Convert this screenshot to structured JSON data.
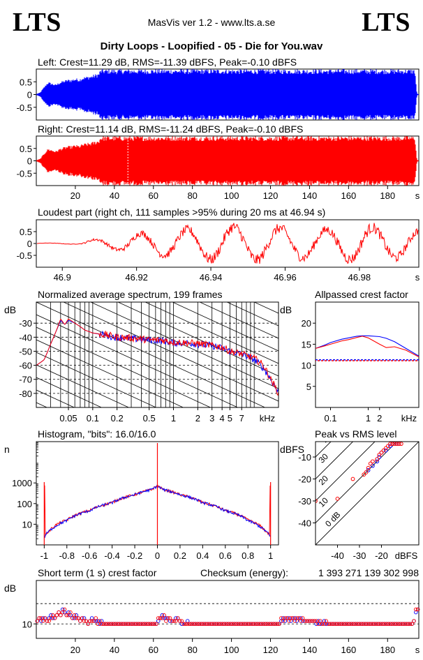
{
  "header": {
    "brand_left": "LTS",
    "brand_right": "LTS",
    "app_line": "MasVis ver 1.2 - www.lts.a.se",
    "file_title": "Dirty Loops - Loopified - 05 - Die for You.wav"
  },
  "colors": {
    "left_channel": "#0000ff",
    "right_channel": "#ff0000"
  },
  "chart_data": [
    {
      "id": "left",
      "type": "area",
      "title": "Left: Crest=11.29 dB, RMS=-11.39 dBFS, Peak=-0.10 dBFS",
      "ylim": [
        -1,
        1
      ],
      "yticks": [
        "0.5",
        "0",
        "-0.5"
      ],
      "xlim": [
        0,
        196
      ],
      "envelope": [
        [
          0,
          0.02
        ],
        [
          2,
          0.08
        ],
        [
          4,
          0.3
        ],
        [
          6,
          0.5
        ],
        [
          8,
          0.45
        ],
        [
          10,
          0.4
        ],
        [
          12,
          0.5
        ],
        [
          14,
          0.55
        ],
        [
          16,
          0.6
        ],
        [
          18,
          0.6
        ],
        [
          20,
          0.65
        ],
        [
          22,
          0.62
        ],
        [
          24,
          0.7
        ],
        [
          26,
          0.72
        ],
        [
          28,
          0.75
        ],
        [
          30,
          0.8
        ],
        [
          32,
          0.85
        ],
        [
          33,
          1.0
        ],
        [
          194,
          1.0
        ],
        [
          195,
          0.05
        ],
        [
          196,
          0.0
        ]
      ]
    },
    {
      "id": "right",
      "type": "area",
      "title": "Right: Crest=11.14 dB, RMS=-11.24 dBFS, Peak=-0.10 dBFS",
      "ylim": [
        -1,
        1
      ],
      "yticks": [
        "0.5",
        "0",
        "-0.5"
      ],
      "xlim": [
        0,
        196
      ],
      "xticks": [
        "20",
        "40",
        "60",
        "80",
        "100",
        "120",
        "140",
        "160",
        "180"
      ],
      "xunit": "s",
      "envelope": [
        [
          0,
          0.02
        ],
        [
          2,
          0.08
        ],
        [
          4,
          0.3
        ],
        [
          6,
          0.5
        ],
        [
          8,
          0.45
        ],
        [
          10,
          0.4
        ],
        [
          12,
          0.5
        ],
        [
          14,
          0.55
        ],
        [
          16,
          0.6
        ],
        [
          18,
          0.6
        ],
        [
          20,
          0.65
        ],
        [
          22,
          0.62
        ],
        [
          24,
          0.7
        ],
        [
          26,
          0.72
        ],
        [
          28,
          0.75
        ],
        [
          30,
          0.8
        ],
        [
          32,
          0.85
        ],
        [
          33,
          1.0
        ],
        [
          194,
          1.0
        ],
        [
          195,
          0.05
        ],
        [
          196,
          0.0
        ]
      ]
    },
    {
      "id": "loudest",
      "type": "line",
      "title": "Loudest part (right ch, 111 samples >95% during 20 ms at 46.94 s)",
      "ylim": [
        -1,
        1
      ],
      "yticks": [
        "0.5",
        "0",
        "-0.5"
      ],
      "xlim": [
        46.893,
        46.996
      ],
      "xticks": [
        "46.9",
        "46.92",
        "46.94",
        "46.96",
        "46.98"
      ],
      "xunit": "s",
      "envelope": [
        [
          46.893,
          0.02
        ],
        [
          46.9,
          0.03
        ],
        [
          46.905,
          0.04
        ],
        [
          46.906,
          0.15
        ],
        [
          46.91,
          0.25
        ],
        [
          46.915,
          0.35
        ],
        [
          46.92,
          0.55
        ],
        [
          46.93,
          0.7
        ],
        [
          46.94,
          0.9
        ],
        [
          46.95,
          0.95
        ],
        [
          46.96,
          0.85
        ],
        [
          46.97,
          0.75
        ],
        [
          46.98,
          0.95
        ],
        [
          46.996,
          0.7
        ]
      ],
      "dominant_period_s": 0.0125
    },
    {
      "id": "spectrum",
      "type": "line",
      "title": "Normalized average spectrum, 199 frames",
      "ylabel": "dB",
      "xunit": "kHz",
      "xlim": [
        0.02,
        20
      ],
      "ylim": [
        -90,
        -15
      ],
      "yticks": [
        "-30",
        "-40",
        "-50",
        "-60",
        "-70",
        "-80"
      ],
      "xticks": [
        "0.05",
        "0.1",
        "0.2",
        "0.5",
        "1",
        "2",
        "3",
        "4",
        "5",
        "7"
      ],
      "grid": true,
      "x": [
        0.02,
        0.025,
        0.03,
        0.035,
        0.04,
        0.045,
        0.05,
        0.06,
        0.08,
        0.1,
        0.15,
        0.2,
        0.3,
        0.5,
        0.7,
        1,
        1.5,
        2,
        3,
        4,
        5,
        7,
        10,
        13,
        16,
        20
      ],
      "series": [
        {
          "name": "L",
          "color": "#0000ff",
          "values": [
            -60,
            -56,
            -45,
            -36,
            -28,
            -31,
            -28,
            -30,
            -35,
            -37,
            -39,
            -40,
            -41,
            -42,
            -42.5,
            -44,
            -44,
            -45,
            -46,
            -48,
            -50,
            -52,
            -56,
            -62,
            -70,
            -80
          ]
        },
        {
          "name": "R",
          "color": "#ff0000",
          "values": [
            -60,
            -56,
            -45,
            -36,
            -27,
            -31,
            -27,
            -30,
            -35,
            -37,
            -38.5,
            -40,
            -40.5,
            -42,
            -42,
            -43.5,
            -44,
            -44.5,
            -46,
            -47,
            -50,
            -52,
            -55,
            -60,
            -70,
            -80
          ]
        }
      ]
    },
    {
      "id": "allpass",
      "type": "line",
      "title": "Allpassed crest factor",
      "ylabel": "dB",
      "xunit": "kHz",
      "xlim": [
        0.04,
        22
      ],
      "ylim": [
        0,
        25
      ],
      "yticks": [
        "20",
        "15",
        "10",
        "5"
      ],
      "xticks": [
        "0.1",
        "1",
        "2"
      ],
      "x": [
        0.04,
        0.07,
        0.1,
        0.2,
        0.3,
        0.5,
        0.7,
        1,
        2,
        3,
        5,
        10,
        22
      ],
      "series": [
        {
          "name": "L",
          "color": "#0000ff",
          "values": [
            14,
            14.8,
            15.4,
            16.2,
            16.5,
            16.9,
            17.0,
            17.0,
            16.8,
            16.4,
            15.6,
            14.0,
            12.2
          ]
        },
        {
          "name": "R",
          "color": "#ff0000",
          "values": [
            14,
            14.6,
            15.0,
            15.8,
            16.1,
            16.6,
            16.9,
            16.5,
            15.0,
            14.2,
            14.4,
            13.6,
            12.0
          ]
        }
      ],
      "reference_L": 11.3,
      "reference_R": 11.1
    },
    {
      "id": "histogram",
      "type": "line",
      "title": "Histogram, \"bits\": 16.0/16.0",
      "ylabel": "n",
      "xlim": [
        -1.07,
        1.07
      ],
      "ylim": [
        1,
        100000
      ],
      "yscale": "log",
      "yticks": [
        "1000",
        "100",
        "10"
      ],
      "xticks": [
        "-1",
        "-0.8",
        "-0.6",
        "-0.4",
        "-0.2",
        "0",
        "0.2",
        "0.4",
        "0.6",
        "0.8",
        "1"
      ],
      "x": [
        -1.0,
        -0.99,
        -0.95,
        -0.9,
        -0.8,
        -0.6,
        -0.4,
        -0.2,
        -0.05,
        0.0,
        0.05,
        0.2,
        0.4,
        0.6,
        0.8,
        0.9,
        0.95,
        0.99,
        1.0
      ],
      "series": [
        {
          "name": "L",
          "color": "#0000ff",
          "values": [
            2,
            3,
            5,
            8,
            15,
            45,
            110,
            270,
            480,
            700,
            480,
            270,
            110,
            45,
            15,
            8,
            5,
            3,
            2
          ]
        },
        {
          "name": "R",
          "color": "#ff0000",
          "values": [
            1100,
            3,
            5,
            9,
            16,
            46,
            112,
            272,
            482,
            720,
            482,
            272,
            112,
            46,
            16,
            9,
            5,
            3,
            1100
          ]
        }
      ]
    },
    {
      "id": "peakrms",
      "type": "scatter",
      "title": "Peak vs RMS level",
      "ylabel": "dBFS",
      "xunit": "dBFS",
      "xlim": [
        -50,
        -3
      ],
      "ylim": [
        -50,
        -3
      ],
      "xticks": [
        "-40",
        "-30",
        "-20"
      ],
      "yticks": [
        "-10",
        "-20",
        "-30",
        "-40"
      ],
      "diagonals": [
        "0 dB",
        "10",
        "20",
        "30",
        "40"
      ],
      "series": [
        {
          "name": "L",
          "color": "#0000ff",
          "points": [
            [
              -26,
              -16
            ],
            [
              -24,
              -14
            ],
            [
              -22,
              -12
            ],
            [
              -21,
              -10
            ],
            [
              -20,
              -8
            ],
            [
              -18,
              -7
            ],
            [
              -16,
              -5
            ],
            [
              -15,
              -4
            ],
            [
              -14,
              -4
            ],
            [
              -13,
              -4
            ],
            [
              -12,
              -4
            ]
          ]
        },
        {
          "name": "R",
          "color": "#ff0000",
          "points": [
            [
              -50,
              -30
            ],
            [
              -40,
              -29
            ],
            [
              -33,
              -20
            ],
            [
              -28,
              -18
            ],
            [
              -27,
              -17
            ],
            [
              -26,
              -15
            ],
            [
              -25,
              -13
            ],
            [
              -24,
              -12
            ],
            [
              -22,
              -11
            ],
            [
              -21,
              -9
            ],
            [
              -20,
              -8
            ],
            [
              -19,
              -7
            ],
            [
              -18,
              -6
            ],
            [
              -17,
              -5
            ],
            [
              -16,
              -4
            ],
            [
              -15,
              -4
            ],
            [
              -14,
              -4
            ],
            [
              -13,
              -4
            ],
            [
              -12,
              -4
            ],
            [
              -11,
              -4
            ]
          ]
        }
      ]
    },
    {
      "id": "shortcrest",
      "type": "scatter",
      "title": "Short term (1 s) crest factor",
      "ylabel": "dB",
      "xunit": "s",
      "xlim": [
        0,
        196
      ],
      "ylim": [
        5,
        25
      ],
      "yticks": [
        "10"
      ],
      "xticks": [
        "20",
        "40",
        "60",
        "80",
        "100",
        "120",
        "140",
        "160",
        "180"
      ],
      "reference_lines": [
        10,
        17
      ],
      "series": [
        {
          "name": "L",
          "color": "#0000ff",
          "values": [
            11,
            12,
            11,
            12,
            12,
            11,
            12,
            13,
            12,
            12,
            13,
            14,
            13,
            15,
            14,
            13,
            14,
            13,
            12,
            12,
            13,
            12,
            11,
            12,
            12,
            11,
            10,
            11,
            12,
            11,
            11,
            11,
            10,
            11,
            10,
            10,
            10,
            10,
            10,
            10,
            10,
            10,
            10,
            10,
            10,
            10,
            10,
            10,
            10,
            10,
            10,
            10,
            10,
            10,
            10,
            10,
            10,
            10,
            10,
            10,
            10,
            10,
            11,
            12,
            13,
            12,
            12,
            12,
            11,
            11,
            11,
            12,
            12,
            11,
            10,
            10,
            10,
            11,
            10,
            10,
            10,
            10,
            10,
            10,
            10,
            10,
            10,
            10,
            10,
            10,
            10,
            10,
            10,
            10,
            10,
            10,
            10,
            10,
            10,
            10,
            10,
            10,
            10,
            10,
            10,
            10,
            10,
            10,
            10,
            10,
            10,
            10,
            10,
            10,
            10,
            10,
            10,
            10,
            10,
            10,
            10,
            10,
            10,
            10,
            10,
            11,
            12,
            11,
            12,
            12,
            11,
            12,
            12,
            11,
            12,
            12,
            11,
            11,
            11,
            11,
            11,
            11,
            11,
            10,
            11,
            10,
            10,
            11,
            10,
            10,
            10,
            10,
            10,
            10,
            10,
            10,
            10,
            10,
            10,
            10,
            10,
            10,
            10,
            10,
            10,
            10,
            10,
            10,
            10,
            10,
            10,
            10,
            10,
            10,
            10,
            10,
            10,
            10,
            10,
            10,
            10,
            10,
            10,
            10,
            10,
            10,
            10,
            10,
            10,
            10,
            10,
            10,
            10,
            11,
            14,
            15
          ]
        },
        {
          "name": "R",
          "color": "#ff0000",
          "values": [
            11,
            12,
            12,
            11,
            12,
            11,
            11,
            12,
            13,
            12,
            13,
            14,
            13,
            14,
            15,
            13,
            13,
            14,
            12,
            13,
            12,
            12,
            11,
            12,
            11,
            11,
            10,
            11,
            11,
            11,
            12,
            10,
            11,
            10,
            10,
            10,
            10,
            10,
            10,
            10,
            10,
            10,
            10,
            10,
            10,
            10,
            10,
            10,
            10,
            10,
            10,
            10,
            10,
            10,
            10,
            10,
            10,
            10,
            10,
            10,
            10,
            10,
            12,
            12,
            12,
            13,
            11,
            12,
            12,
            11,
            11,
            11,
            12,
            11,
            11,
            10,
            10,
            10,
            10,
            10,
            10,
            10,
            10,
            10,
            10,
            10,
            10,
            10,
            10,
            10,
            10,
            10,
            10,
            10,
            10,
            10,
            10,
            10,
            10,
            10,
            10,
            10,
            10,
            10,
            10,
            10,
            10,
            10,
            10,
            10,
            10,
            10,
            10,
            10,
            10,
            10,
            10,
            10,
            10,
            10,
            10,
            10,
            10,
            10,
            10,
            12,
            11,
            12,
            12,
            11,
            12,
            12,
            11,
            12,
            12,
            11,
            12,
            11,
            11,
            11,
            11,
            11,
            11,
            11,
            10,
            11,
            10,
            10,
            11,
            10,
            10,
            10,
            10,
            10,
            10,
            10,
            10,
            10,
            10,
            10,
            10,
            10,
            10,
            10,
            10,
            10,
            10,
            10,
            10,
            10,
            10,
            10,
            10,
            10,
            10,
            10,
            10,
            10,
            10,
            10,
            10,
            10,
            10,
            10,
            10,
            10,
            10,
            10,
            10,
            10,
            10,
            10,
            10,
            11,
            15,
            15
          ]
        }
      ],
      "checksum_label": "Checksum (energy):",
      "checksum_value": "1 393 271 139 302 998"
    }
  ]
}
